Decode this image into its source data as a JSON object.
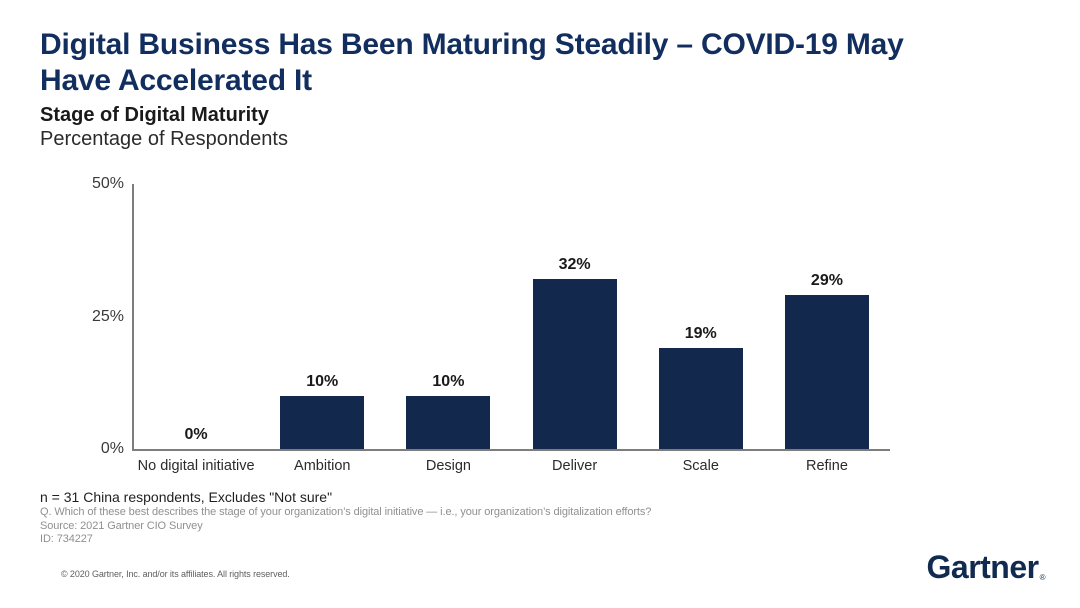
{
  "title": {
    "line1": "Digital Business Has Been Maturing Steadily – COVID-19 May",
    "line2": "Have Accelerated It"
  },
  "subtitle": "Stage of Digital Maturity",
  "subtitle2": "Percentage of Respondents",
  "chart_data": {
    "type": "bar",
    "title": "Stage of Digital Maturity",
    "subtitle": "Percentage of Respondents",
    "categories": [
      "No digital initiative",
      "Ambition",
      "Design",
      "Deliver",
      "Scale",
      "Refine"
    ],
    "values": [
      0,
      10,
      10,
      32,
      19,
      29
    ],
    "value_labels": [
      "0%",
      "10%",
      "10%",
      "32%",
      "19%",
      "29%"
    ],
    "xlabel": "",
    "ylabel": "",
    "ylim": [
      0,
      50
    ],
    "yticks": [
      {
        "label": "50%",
        "value": 50
      },
      {
        "label": "25%",
        "value": 25
      },
      {
        "label": "0%",
        "value": 0
      }
    ],
    "grid": false,
    "legend": false,
    "bar_color": "#12294d"
  },
  "footnotes": {
    "n_line": "n = 31 China respondents, Excludes \"Not sure\"",
    "q_line": "Q. Which of these best describes the stage of your organization’s digital initiative — i.e., your organization’s digitalization efforts?",
    "source_line": "Source: 2021 Gartner CIO Survey",
    "id_line": "ID: 734227"
  },
  "footer": {
    "copyright": "© 2020 Gartner, Inc. and/or its affiliates. All rights reserved.",
    "logo_text": "Gartner",
    "logo_registered": "®"
  },
  "colors": {
    "title_navy": "#112e5f",
    "bar_navy": "#12294d",
    "axis_gray": "#7d7d7d",
    "footnote_gray": "#909090"
  }
}
